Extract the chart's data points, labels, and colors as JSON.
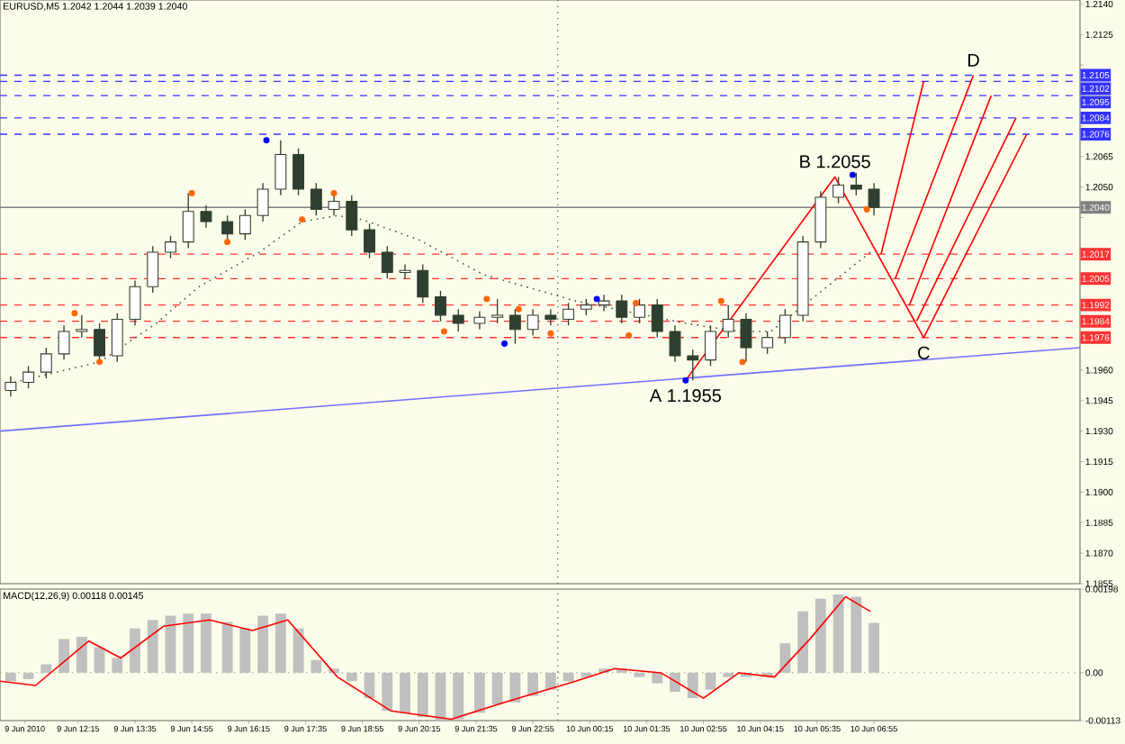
{
  "chart_data": [
    {
      "type": "candlestick",
      "title": "EURUSD,M5 1.2042 1.2044 1.2039 1.2040",
      "color": "#2f3f2f",
      "x": [
        "2010-06-09T10:40",
        "2010-06-09T11:05",
        "2010-06-09T11:30",
        "2010-06-09T11:55",
        "2010-06-09T12:20",
        "2010-06-09T12:45",
        "2010-06-09T13:10",
        "2010-06-09T13:35",
        "2010-06-09T14:00",
        "2010-06-09T14:25",
        "2010-06-09T14:50",
        "2010-06-09T15:15",
        "2010-06-09T15:45",
        "2010-06-09T16:10",
        "2010-06-09T16:35",
        "2010-06-09T17:00",
        "2010-06-09T17:25",
        "2010-06-09T17:50",
        "2010-06-09T18:15",
        "2010-06-09T18:40",
        "2010-06-09T19:05",
        "2010-06-09T19:30",
        "2010-06-09T19:55",
        "2010-06-09T20:20",
        "2010-06-09T20:45",
        "2010-06-09T21:10",
        "2010-06-09T21:40",
        "2010-06-09T22:05",
        "2010-06-09T22:30",
        "2010-06-09T22:55",
        "2010-06-09T23:20",
        "2010-06-09T23:45",
        "2010-06-10T00:10",
        "2010-06-10T00:35",
        "2010-06-10T01:00",
        "2010-06-10T01:25",
        "2010-06-10T01:50",
        "2010-06-10T02:15",
        "2010-06-10T02:40",
        "2010-06-10T03:05",
        "2010-06-10T03:30",
        "2010-06-10T03:55",
        "2010-06-10T04:25",
        "2010-06-10T04:50",
        "2010-06-10T05:15",
        "2010-06-10T05:40",
        "2010-06-10T06:05",
        "2010-06-10T06:30",
        "2010-06-10T06:55"
      ],
      "ohlc": [
        [
          1.195,
          1.1957,
          1.1947,
          1.1954
        ],
        [
          1.1954,
          1.1962,
          1.1951,
          1.1959
        ],
        [
          1.1959,
          1.1971,
          1.1956,
          1.1968
        ],
        [
          1.1968,
          1.1982,
          1.1965,
          1.1979
        ],
        [
          1.1979,
          1.1987,
          1.1976,
          1.198
        ],
        [
          1.198,
          1.1983,
          1.1964,
          1.1967
        ],
        [
          1.1967,
          1.1988,
          1.1964,
          1.1985
        ],
        [
          1.1985,
          1.2004,
          1.1982,
          1.2001
        ],
        [
          1.2001,
          1.2021,
          1.1998,
          1.2018
        ],
        [
          1.2018,
          1.2026,
          1.2015,
          1.2023
        ],
        [
          1.2023,
          1.2047,
          1.202,
          1.2038
        ],
        [
          1.2038,
          1.2041,
          1.203,
          1.2033
        ],
        [
          1.2033,
          1.2036,
          1.2023,
          1.2027
        ],
        [
          1.2027,
          1.2039,
          1.2024,
          1.2036
        ],
        [
          1.2036,
          1.2052,
          1.2033,
          1.2049
        ],
        [
          1.2049,
          1.2073,
          1.2046,
          1.2066
        ],
        [
          1.2066,
          1.2069,
          1.2046,
          1.2049
        ],
        [
          1.2049,
          1.2052,
          1.2036,
          1.2039
        ],
        [
          1.2039,
          1.2047,
          1.2036,
          1.2043
        ],
        [
          1.2043,
          1.2046,
          1.2026,
          1.2029
        ],
        [
          1.2029,
          1.2032,
          1.2015,
          1.2018
        ],
        [
          1.2018,
          1.2021,
          1.2005,
          1.2008
        ],
        [
          1.2008,
          1.2012,
          1.2005,
          1.2009
        ],
        [
          1.2009,
          1.2012,
          1.1993,
          1.1996
        ],
        [
          1.1996,
          1.1999,
          1.1984,
          1.1987
        ],
        [
          1.1987,
          1.199,
          1.1979,
          1.1983
        ],
        [
          1.1983,
          1.1989,
          1.198,
          1.1986
        ],
        [
          1.1986,
          1.1995,
          1.1983,
          1.1987
        ],
        [
          1.1987,
          1.199,
          1.1973,
          1.198
        ],
        [
          1.198,
          1.199,
          1.1977,
          1.1987
        ],
        [
          1.1987,
          1.199,
          1.1982,
          1.1985
        ],
        [
          1.1985,
          1.1993,
          1.1982,
          1.199
        ],
        [
          1.199,
          1.1995,
          1.1987,
          1.1992
        ],
        [
          1.1992,
          1.1997,
          1.1989,
          1.1994
        ],
        [
          1.1994,
          1.1997,
          1.1983,
          1.1986
        ],
        [
          1.1986,
          1.1995,
          1.1983,
          1.1992
        ],
        [
          1.1992,
          1.1995,
          1.1976,
          1.1979
        ],
        [
          1.1979,
          1.1982,
          1.1964,
          1.1967
        ],
        [
          1.1967,
          1.197,
          1.1955,
          1.1965
        ],
        [
          1.1965,
          1.1982,
          1.1962,
          1.1979
        ],
        [
          1.1979,
          1.1992,
          1.1976,
          1.1985
        ],
        [
          1.1985,
          1.1988,
          1.1964,
          1.1971
        ],
        [
          1.1971,
          1.1979,
          1.1968,
          1.1976
        ],
        [
          1.1976,
          1.199,
          1.1973,
          1.1987
        ],
        [
          1.1987,
          1.2026,
          1.1984,
          1.2023
        ],
        [
          1.2023,
          1.2048,
          1.202,
          1.2045
        ],
        [
          1.2045,
          1.2055,
          1.2042,
          1.2051
        ],
        [
          1.2051,
          1.2057,
          1.2046,
          1.2049
        ],
        [
          1.2049,
          1.2052,
          1.2036,
          1.204
        ]
      ],
      "xlim": [
        "2010-06-09T10:25",
        "2010-06-10T11:45"
      ],
      "ylim": [
        1.1855,
        1.2142
      ],
      "tick_labels": "y",
      "yticks": [
        {
          "value": 1.214,
          "label": "1.2140"
        },
        {
          "value": 1.2125,
          "label": "1.2125"
        },
        {
          "value": 1.211,
          "label": null
        },
        {
          "value": 1.2095,
          "label": null
        },
        {
          "value": 1.208,
          "label": null
        },
        {
          "value": 1.2065,
          "label": "1.2065"
        },
        {
          "value": 1.205,
          "label": "1.2050"
        },
        {
          "value": 1.2035,
          "label": null
        },
        {
          "value": 1.202,
          "label": null
        },
        {
          "value": 1.2005,
          "label": null
        },
        {
          "value": 1.199,
          "label": null
        },
        {
          "value": 1.1975,
          "label": null
        },
        {
          "value": 1.196,
          "label": "1.1960"
        },
        {
          "value": 1.1945,
          "label": "1.1945"
        },
        {
          "value": 1.193,
          "label": "1.1930"
        },
        {
          "value": 1.1915,
          "label": "1.1915"
        },
        {
          "value": 1.19,
          "label": "1.1900"
        },
        {
          "value": 1.1885,
          "label": "1.1885"
        },
        {
          "value": 1.187,
          "label": "1.1870"
        },
        {
          "value": 1.1855,
          "label": "1.1855"
        }
      ],
      "series": [
        {
          "type": "line",
          "color": "#505050",
          "line_style": "dotted",
          "x": [
            "2010-06-09T10:45",
            "2010-06-09T12:45",
            "2010-06-09T14:05",
            "2010-06-09T15:05",
            "2010-06-09T16:30",
            "2010-06-09T17:30",
            "2010-06-09T18:20",
            "2010-06-09T18:55",
            "2010-06-09T20:15",
            "2010-06-09T21:45",
            "2010-06-09T23:55",
            "2010-06-10T02:30",
            "2010-06-10T03:45",
            "2010-06-10T04:30",
            "2010-06-10T06:50"
          ],
          "values": [
            1.1954,
            1.1964,
            1.1983,
            1.2001,
            1.2018,
            1.2033,
            1.2036,
            1.2034,
            1.2024,
            1.2007,
            1.1994,
            1.1983,
            1.1979,
            1.1979,
            1.2018
          ]
        },
        {
          "type": "line",
          "color": "#7070ff",
          "line_style": "solid",
          "x": [
            "2010-06-09T10:25",
            "2010-06-10T11:45"
          ],
          "values": [
            1.193,
            1.1971
          ]
        },
        {
          "type": "line",
          "color": "#ff0000",
          "line_style": "solid",
          "x": [
            "2010-06-10T02:30",
            "2010-06-10T06:00",
            "2010-06-10T08:05"
          ],
          "values": [
            1.1955,
            1.2055,
            1.1976
          ]
        },
        {
          "type": "line",
          "color": "#ff0000",
          "line_style": "solid",
          "x": [
            "2010-06-10T07:05",
            "2010-06-10T08:05"
          ],
          "values": [
            1.2017,
            1.2102
          ]
        },
        {
          "type": "line",
          "color": "#ff0000",
          "line_style": "solid",
          "x": [
            "2010-06-10T07:25",
            "2010-06-10T09:15"
          ],
          "values": [
            1.2005,
            1.2105
          ]
        },
        {
          "type": "line",
          "color": "#ff0000",
          "line_style": "solid",
          "x": [
            "2010-06-10T07:45",
            "2010-06-10T09:40"
          ],
          "values": [
            1.1992,
            1.2095
          ]
        },
        {
          "type": "line",
          "color": "#ff0000",
          "line_style": "solid",
          "x": [
            "2010-06-10T07:55",
            "2010-06-10T10:15"
          ],
          "values": [
            1.1984,
            1.2084
          ]
        },
        {
          "type": "line",
          "color": "#ff0000",
          "line_style": "solid",
          "x": [
            "2010-06-10T08:05",
            "2010-06-10T10:30"
          ],
          "values": [
            1.1976,
            1.2076
          ]
        },
        {
          "type": "scatter",
          "color": "#ff6600",
          "marker": "circle",
          "x": [
            "2010-06-09T12:10",
            "2010-06-09T12:45",
            "2010-06-09T14:55",
            "2010-06-09T15:45",
            "2010-06-09T17:30",
            "2010-06-09T18:15",
            "2010-06-09T20:50",
            "2010-06-09T21:50",
            "2010-06-09T22:35",
            "2010-06-09T23:20",
            "2010-06-10T01:10",
            "2010-06-10T01:20",
            "2010-06-10T03:20",
            "2010-06-10T03:50",
            "2010-06-10T06:45"
          ],
          "values": [
            1.1988,
            1.1964,
            1.2047,
            1.2023,
            1.2034,
            1.2047,
            1.1979,
            1.1995,
            1.199,
            1.1978,
            1.1977,
            1.1993,
            1.1994,
            1.1964,
            1.2039
          ]
        },
        {
          "type": "scatter",
          "color": "#0000ff",
          "marker": "circle",
          "x": [
            "2010-06-09T16:40",
            "2010-06-09T22:15",
            "2010-06-10T00:25",
            "2010-06-10T02:30",
            "2010-06-10T06:25"
          ],
          "values": [
            1.2073,
            1.1973,
            1.1995,
            1.1955,
            1.2056
          ]
        }
      ],
      "ref_lines": [
        {
          "axis": "y",
          "value": 1.2105,
          "label": "1.2105",
          "color": "#3333ff",
          "line_style": "dashed"
        },
        {
          "axis": "y",
          "value": 1.2102,
          "label": "1.2102",
          "color": "#3333ff",
          "line_style": "dashed"
        },
        {
          "axis": "y",
          "value": 1.2095,
          "label": "1.2095",
          "color": "#3333ff",
          "line_style": "dashed"
        },
        {
          "axis": "y",
          "value": 1.2084,
          "label": "1.2084",
          "color": "#3333ff",
          "line_style": "dashed"
        },
        {
          "axis": "y",
          "value": 1.2076,
          "label": "1.2076",
          "color": "#3333ff",
          "line_style": "dashed"
        },
        {
          "axis": "y",
          "value": 1.204,
          "label": "1.2040",
          "color": "#808080",
          "line_style": "solid"
        },
        {
          "axis": "y",
          "value": 1.2017,
          "label": "1.2017",
          "color": "#ff3333",
          "line_style": "dashed"
        },
        {
          "axis": "y",
          "value": 1.2005,
          "label": "1.2005",
          "color": "#ff3333",
          "line_style": "dashed"
        },
        {
          "axis": "y",
          "value": 1.1992,
          "label": "1.1992",
          "color": "#ff3333",
          "line_style": "dashed"
        },
        {
          "axis": "y",
          "value": 1.1984,
          "label": "1.1984",
          "color": "#ff3333",
          "line_style": "dashed"
        },
        {
          "axis": "y",
          "value": 1.1976,
          "label": "1.1976",
          "color": "#ff3333",
          "line_style": "dashed"
        },
        {
          "axis": "x",
          "value": "2010-06-09T23:30",
          "color": "#606060",
          "line_style": "dotted"
        }
      ],
      "annotations": [
        {
          "text": "A 1.1955",
          "x": "2010-06-10T02:30",
          "y": 1.1955
        },
        {
          "text": "B 1.2055",
          "x": "2010-06-10T06:00",
          "y": 1.2055
        },
        {
          "text": "C",
          "x": "2010-06-10T08:05",
          "y": 1.1976
        },
        {
          "text": "D",
          "x": "2010-06-10T09:15",
          "y": 1.2105
        }
      ]
    },
    {
      "type": "bar",
      "title": "MACD(12,26,9) 0.00118 0.00145",
      "xlim": [
        "2010-06-09T10:25",
        "2010-06-10T11:45"
      ],
      "ylim": [
        -0.00113,
        0.00198
      ],
      "yticks": [
        {
          "value": 0.00198,
          "label": "0.00198"
        },
        {
          "value": 0,
          "label": "0.00"
        },
        {
          "value": -0.00113,
          "label": "-0.00113"
        }
      ],
      "xticks": [
        {
          "value": "2010-06-09T11:00",
          "label": "9 Jun 2010"
        },
        {
          "value": "2010-06-09T12:15",
          "label": "9 Jun 12:15"
        },
        {
          "value": "2010-06-09T13:35",
          "label": "9 Jun 13:35"
        },
        {
          "value": "2010-06-09T14:55",
          "label": "9 Jun 14:55"
        },
        {
          "value": "2010-06-09T16:15",
          "label": "9 Jun 16:15"
        },
        {
          "value": "2010-06-09T17:35",
          "label": "9 Jun 17:35"
        },
        {
          "value": "2010-06-09T18:55",
          "label": "9 Jun 18:55"
        },
        {
          "value": "2010-06-09T20:15",
          "label": "9 Jun 20:15"
        },
        {
          "value": "2010-06-09T21:35",
          "label": "9 Jun 21:35"
        },
        {
          "value": "2010-06-09T22:55",
          "label": "9 Jun 22:55"
        },
        {
          "value": "2010-06-10T00:15",
          "label": "10 Jun 00:15"
        },
        {
          "value": "2010-06-10T01:35",
          "label": "10 Jun 01:35"
        },
        {
          "value": "2010-06-10T02:55",
          "label": "10 Jun 02:55"
        },
        {
          "value": "2010-06-10T04:15",
          "label": "10 Jun 04:15"
        },
        {
          "value": "2010-06-10T05:35",
          "label": "10 Jun 05:35"
        },
        {
          "value": "2010-06-10T06:55",
          "label": "10 Jun 06:55"
        }
      ],
      "series": [
        {
          "type": "bar",
          "color": "#c0c0c0",
          "x": [
            "2010-06-09T10:40",
            "2010-06-09T11:05",
            "2010-06-09T11:30",
            "2010-06-09T11:55",
            "2010-06-09T12:20",
            "2010-06-09T12:45",
            "2010-06-09T13:10",
            "2010-06-09T13:35",
            "2010-06-09T14:00",
            "2010-06-09T14:25",
            "2010-06-09T14:50",
            "2010-06-09T15:15",
            "2010-06-09T15:45",
            "2010-06-09T16:10",
            "2010-06-09T16:35",
            "2010-06-09T17:00",
            "2010-06-09T17:25",
            "2010-06-09T17:50",
            "2010-06-09T18:15",
            "2010-06-09T18:40",
            "2010-06-09T19:05",
            "2010-06-09T19:30",
            "2010-06-09T19:55",
            "2010-06-09T20:20",
            "2010-06-09T20:45",
            "2010-06-09T21:10",
            "2010-06-09T21:40",
            "2010-06-09T22:05",
            "2010-06-09T22:30",
            "2010-06-09T22:55",
            "2010-06-09T23:20",
            "2010-06-09T23:45",
            "2010-06-10T00:10",
            "2010-06-10T00:35",
            "2010-06-10T01:00",
            "2010-06-10T01:25",
            "2010-06-10T01:50",
            "2010-06-10T02:15",
            "2010-06-10T02:40",
            "2010-06-10T03:05",
            "2010-06-10T03:30",
            "2010-06-10T03:55",
            "2010-06-10T04:25",
            "2010-06-10T04:50",
            "2010-06-10T05:15",
            "2010-06-10T05:40",
            "2010-06-10T06:05",
            "2010-06-10T06:30",
            "2010-06-10T06:55"
          ],
          "values": [
            -0.0002,
            -0.00015,
            0.0002,
            0.0008,
            0.00085,
            0.0006,
            0.00035,
            0.00105,
            0.00125,
            0.00135,
            0.0014,
            0.0014,
            0.0012,
            0.00105,
            0.00135,
            0.0014,
            0.00105,
            0.0003,
            0.0001,
            -0.0002,
            -0.0006,
            -0.0009,
            -0.00095,
            -0.00105,
            -0.00113,
            -0.0011,
            -0.00095,
            -0.00075,
            -0.0007,
            -0.00055,
            -0.0004,
            -0.0002,
            -0.0001,
            0.0001,
            0.0001,
            -0.0001,
            -0.00025,
            -0.00045,
            -0.0006,
            -0.0004,
            -0.0001,
            -0.0001,
            -0.0001,
            0.0007,
            0.00145,
            0.00175,
            0.00185,
            0.0018,
            0.00118
          ]
        },
        {
          "type": "line",
          "color": "#ff0000",
          "line_style": "solid",
          "x": [
            "2010-06-09T10:25",
            "2010-06-09T11:15",
            "2010-06-09T12:30",
            "2010-06-09T13:15",
            "2010-06-09T14:15",
            "2010-06-09T15:20",
            "2010-06-09T16:20",
            "2010-06-09T17:10",
            "2010-06-09T18:20",
            "2010-06-09T19:35",
            "2010-06-09T21:00",
            "2010-06-09T22:15",
            "2010-06-09T23:05",
            "2010-06-09T23:55",
            "2010-06-10T00:50",
            "2010-06-10T01:55",
            "2010-06-10T02:55",
            "2010-06-10T03:45",
            "2010-06-10T04:35",
            "2010-06-10T05:25",
            "2010-06-10T06:15",
            "2010-06-10T06:50"
          ],
          "values": [
            -0.0002,
            -0.0003,
            0.00075,
            0.00035,
            0.0011,
            0.00125,
            0.001,
            0.00125,
            -0.0001,
            -0.0009,
            -0.0011,
            -0.0007,
            -0.00045,
            -0.0002,
            0.0001,
            0,
            -0.0006,
            0,
            -0.0001,
            0.0008,
            0.0018,
            0.00145
          ]
        }
      ],
      "ref_lines": [
        {
          "axis": "y",
          "value": 0,
          "color": "#a0a0a0",
          "line_style": "dotted"
        },
        {
          "axis": "x",
          "value": "2010-06-09T23:30",
          "color": "#606060",
          "line_style": "dotted"
        }
      ]
    }
  ]
}
